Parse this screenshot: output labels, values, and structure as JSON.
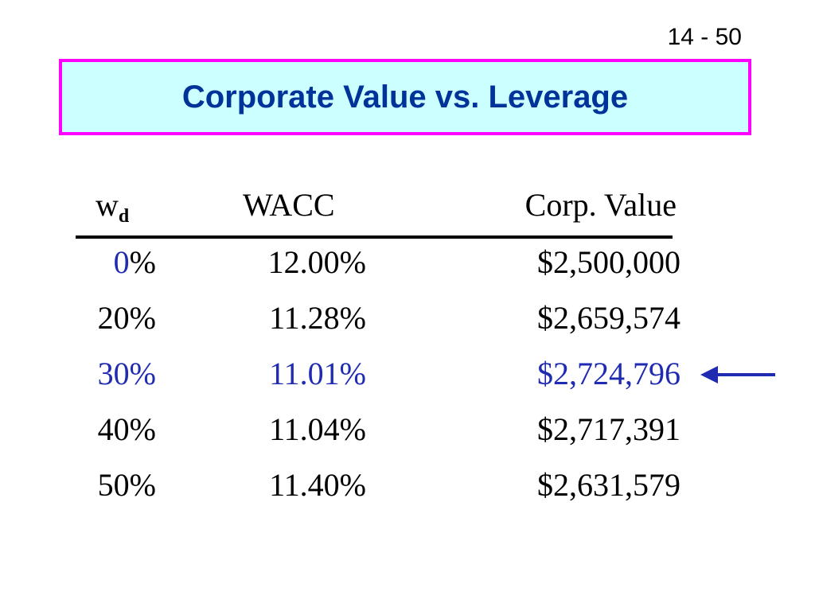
{
  "page_number": "14 - 50",
  "title": "Corporate Value vs. Leverage",
  "headers": {
    "wd_main": "w",
    "wd_sub": "d",
    "wacc": "WACC",
    "corp_value": "Corp. Value"
  },
  "rows": [
    {
      "wd_num": "0",
      "wd_pct": "%",
      "wacc": "12.00%",
      "value": "$2,500,000"
    },
    {
      "wd": "20%",
      "wacc": "11.28%",
      "value": "$2,659,574"
    },
    {
      "wd": "30%",
      "wacc": "11.01%",
      "value": "$2,724,796"
    },
    {
      "wd": "40%",
      "wacc": "11.04%",
      "value": "$2,717,391"
    },
    {
      "wd": "50%",
      "wacc": "11.40%",
      "value": "$2,631,579"
    }
  ],
  "highlighted_row_index": 2,
  "colors": {
    "title_text": "#003399",
    "title_border": "#ff00ff",
    "title_background": "#ccffff",
    "highlight": "#1f2bb0"
  },
  "icons": {
    "pointer": "left-arrow-icon"
  }
}
